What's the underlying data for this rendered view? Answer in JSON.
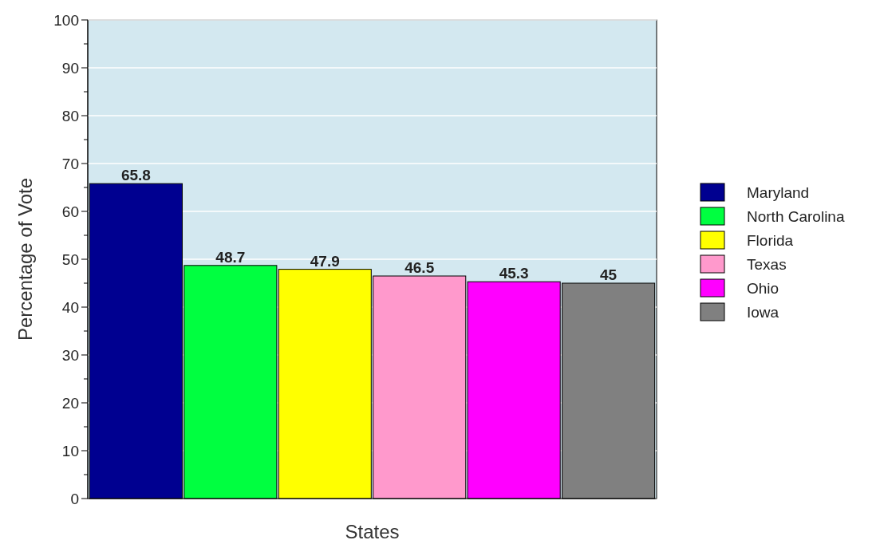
{
  "chart_data": {
    "type": "bar",
    "xlabel": "States",
    "ylabel": "Percentage of Vote",
    "categories": [
      null,
      null,
      null,
      null,
      null,
      null
    ],
    "series": [
      {
        "name": "Maryland",
        "color": "#000090",
        "values": [
          65.8,
          null,
          null,
          null,
          null,
          null
        ]
      },
      {
        "name": "North Carolina",
        "color": "#00ff40",
        "values": [
          null,
          48.7,
          null,
          null,
          null,
          null
        ]
      },
      {
        "name": "Florida",
        "color": "#ffff00",
        "values": [
          null,
          null,
          47.9,
          null,
          null,
          null
        ]
      },
      {
        "name": "Texas",
        "color": "#ff99cc",
        "values": [
          null,
          null,
          null,
          46.5,
          null,
          null
        ]
      },
      {
        "name": "Ohio",
        "color": "#ff00ff",
        "values": [
          null,
          null,
          null,
          null,
          45.3,
          null
        ]
      },
      {
        "name": "Iowa",
        "color": "#808080",
        "values": [
          null,
          null,
          null,
          null,
          null,
          45
        ]
      }
    ],
    "ylim": [
      0,
      100
    ],
    "yticks": [
      0,
      {
        "value": 5,
        "label": null
      },
      10,
      {
        "value": 15,
        "label": null
      },
      20,
      {
        "value": 25,
        "label": null
      },
      30,
      {
        "value": 35,
        "label": null
      },
      40,
      {
        "value": 45,
        "label": null
      },
      50,
      {
        "value": 55,
        "label": null
      },
      60,
      {
        "value": 65,
        "label": null
      },
      70,
      {
        "value": 75,
        "label": null
      },
      80,
      {
        "value": 85,
        "label": null
      },
      90,
      {
        "value": 95,
        "label": null
      },
      100
    ],
    "grid": "y",
    "legend": "right",
    "tick_labels": "y",
    "data_labels": true
  }
}
